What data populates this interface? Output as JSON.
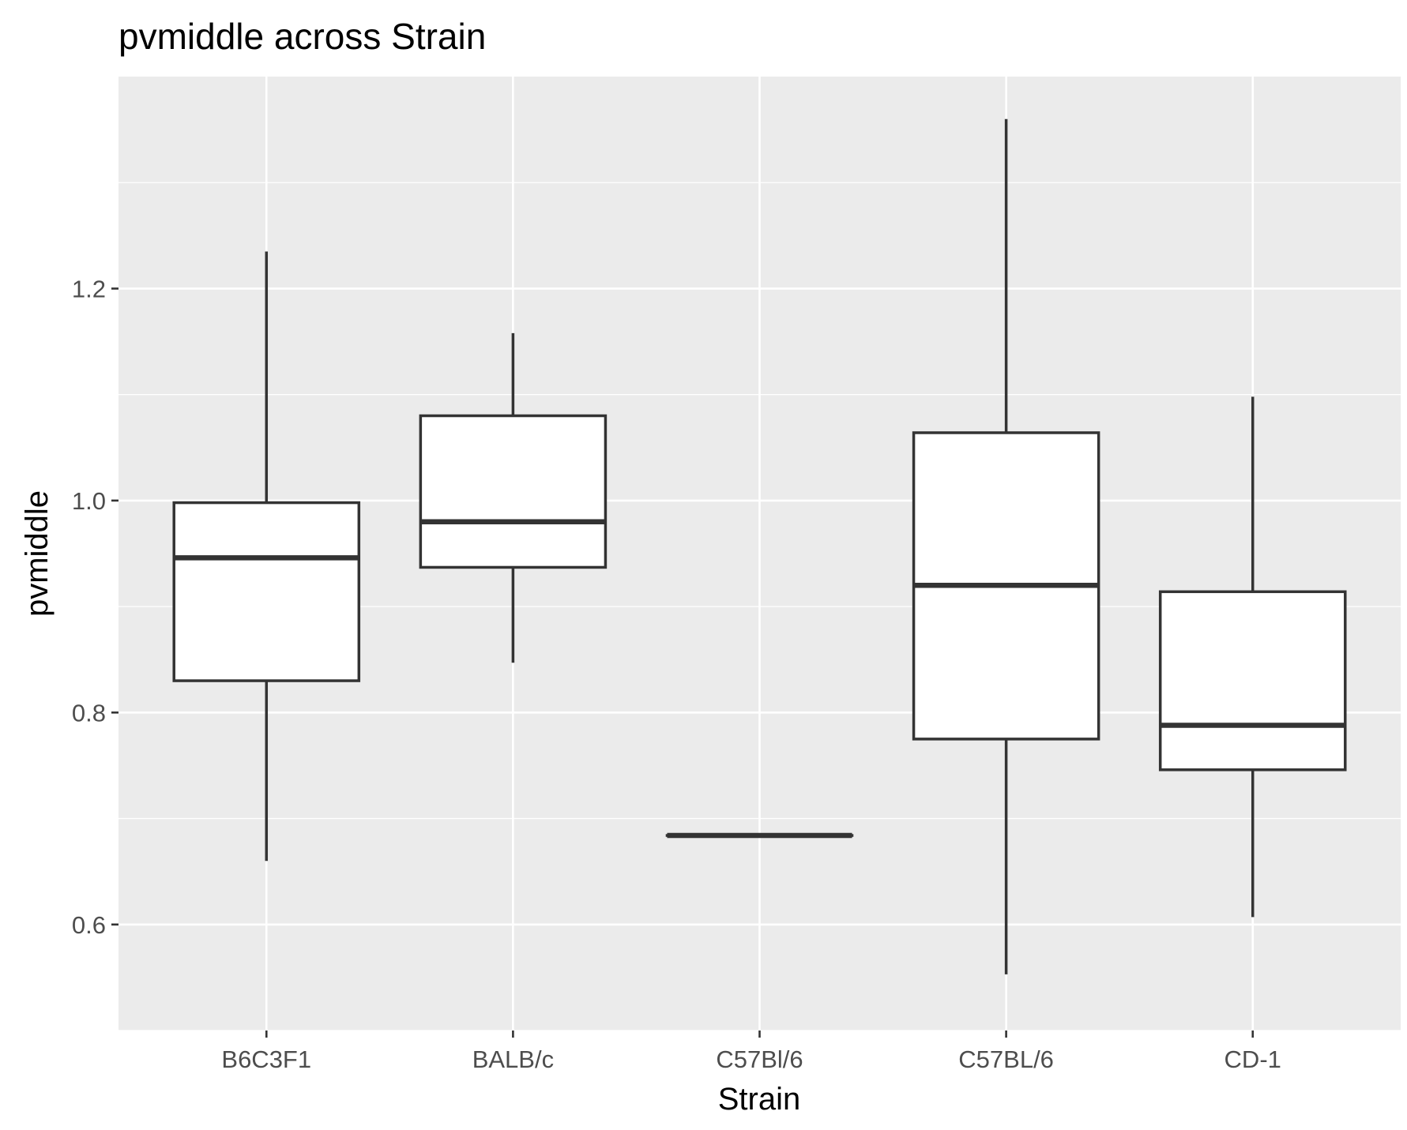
{
  "chart_data": {
    "type": "boxplot",
    "title": "pvmiddle across Strain",
    "xlabel": "Strain",
    "ylabel": "pvmiddle",
    "categories": [
      "B6C3F1",
      "BALB/c",
      "C57Bl/6",
      "C57BL/6",
      "CD-1"
    ],
    "ylim": [
      0.5,
      1.4
    ],
    "yticks": [
      0.6,
      0.8,
      1.0,
      1.2
    ],
    "ytick_labels": [
      "0.6",
      "0.8",
      "1.0",
      "1.2"
    ],
    "grid": true,
    "boxes": [
      {
        "category": "B6C3F1",
        "whisker_low": 0.66,
        "q1": 0.83,
        "median": 0.946,
        "q3": 0.998,
        "whisker_high": 1.235
      },
      {
        "category": "BALB/c",
        "whisker_low": 0.847,
        "q1": 0.937,
        "median": 0.98,
        "q3": 1.08,
        "whisker_high": 1.158
      },
      {
        "category": "C57Bl/6",
        "whisker_low": 0.684,
        "q1": 0.684,
        "median": 0.684,
        "q3": 0.684,
        "whisker_high": 0.684
      },
      {
        "category": "C57BL/6",
        "whisker_low": 0.553,
        "q1": 0.775,
        "median": 0.92,
        "q3": 1.064,
        "whisker_high": 1.36
      },
      {
        "category": "CD-1",
        "whisker_low": 0.607,
        "q1": 0.746,
        "median": 0.788,
        "q3": 0.914,
        "whisker_high": 1.098
      }
    ],
    "colors": {
      "panel": "#ebebeb",
      "grid": "#ffffff",
      "box_fill": "#ffffff",
      "box_stroke": "#333333",
      "tick": "#333333"
    }
  }
}
